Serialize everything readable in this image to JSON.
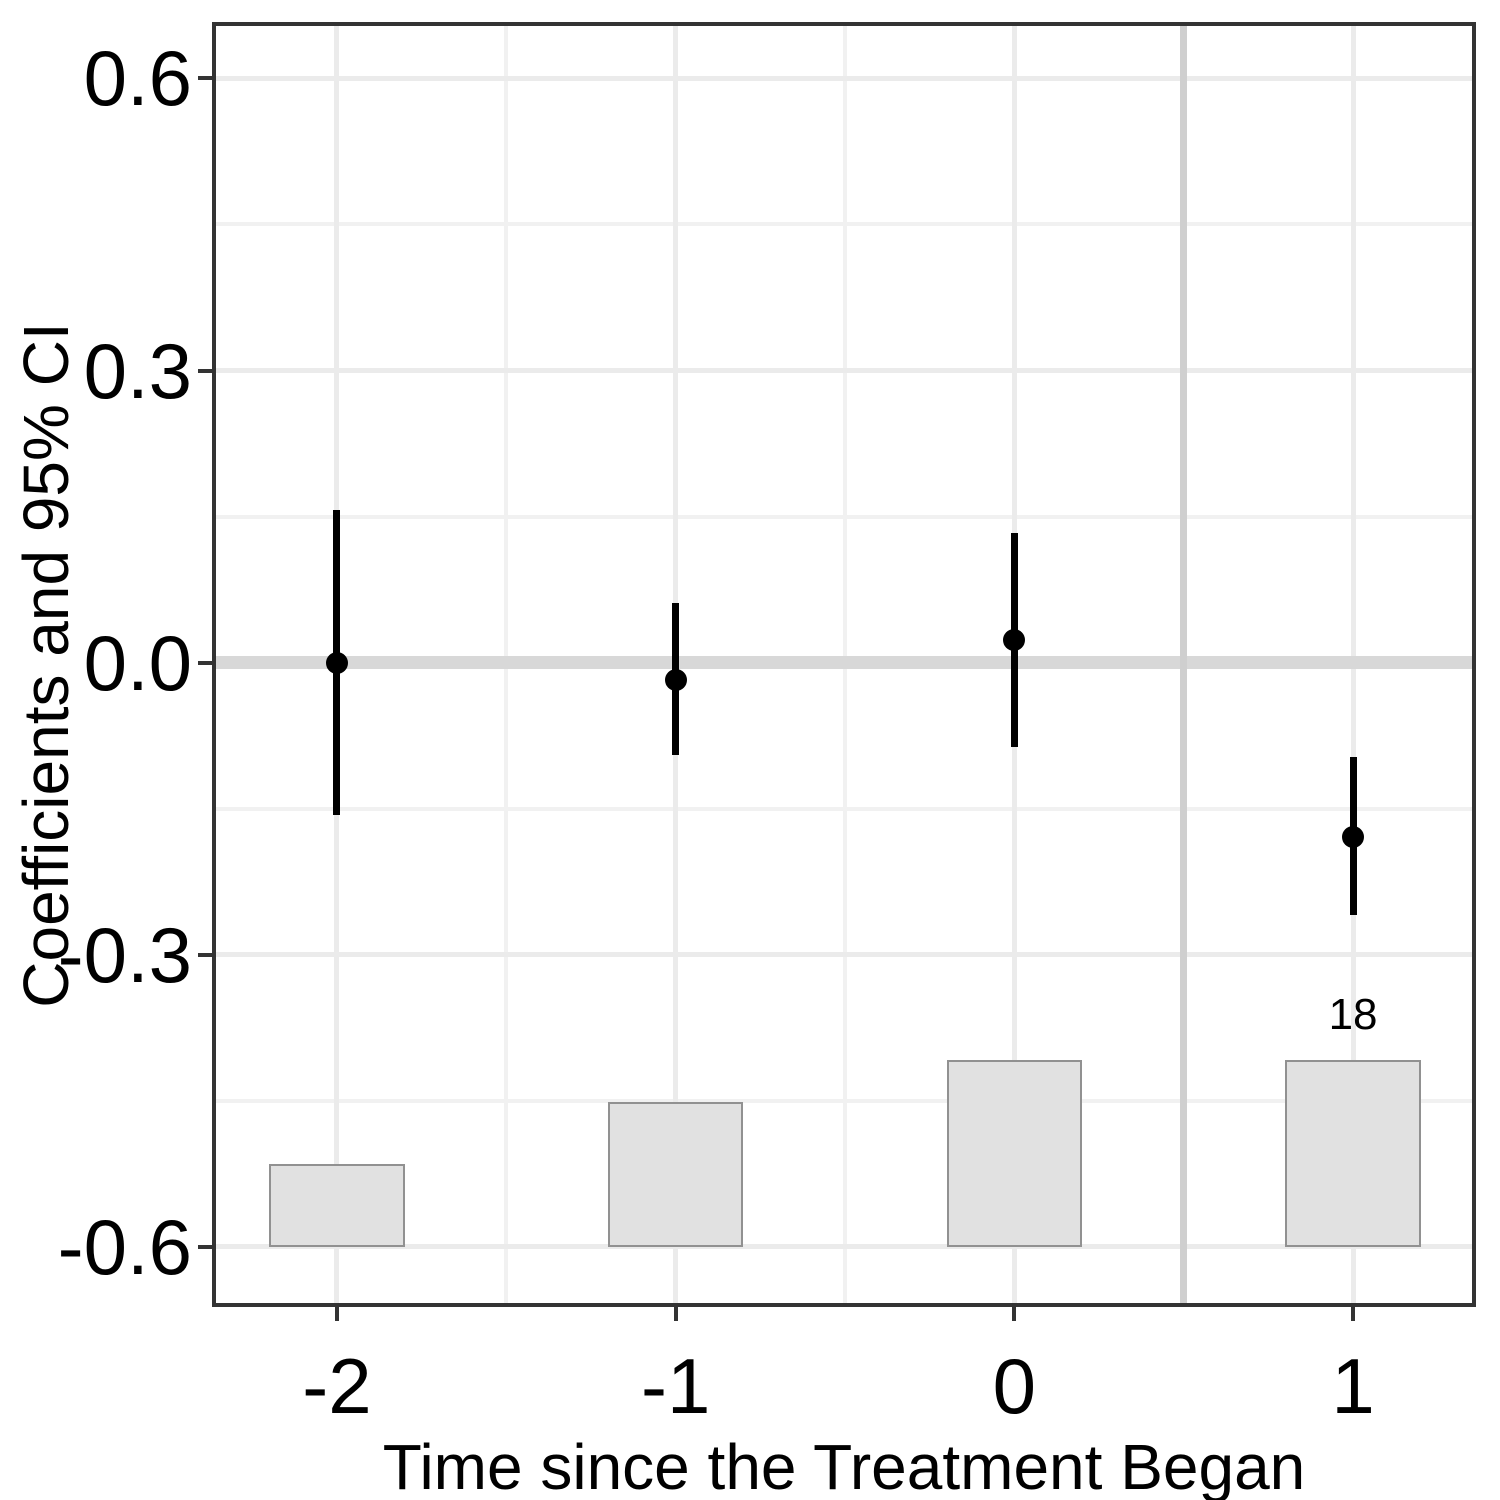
{
  "chart_data": {
    "type": "scatter",
    "subtype": "event-study-pointrange-with-count-bars",
    "title": "",
    "xlabel": "Time since the Treatment Began",
    "ylabel": "Coefficients and 95% CI",
    "xlim": [
      -2.369,
      1.363
    ],
    "ylim": [
      -0.662,
      0.658
    ],
    "x_ticks": [
      -2,
      -1,
      0,
      1
    ],
    "x_tick_labels": [
      "-2",
      "-1",
      "0",
      "1"
    ],
    "y_ticks": [
      0.6,
      0.3,
      0.0,
      -0.3,
      -0.6
    ],
    "y_tick_labels": [
      "0.6",
      "0.3",
      "0.0",
      "-0.3",
      "-0.6"
    ],
    "grid": {
      "major_x": [
        -2,
        -1,
        0,
        1
      ],
      "minor_x": [
        -1.5,
        -0.5,
        0.5
      ],
      "major_y": [
        0.6,
        0.3,
        0.0,
        -0.3,
        -0.6
      ],
      "minor_y": [
        0.45,
        0.15,
        -0.15,
        -0.45
      ],
      "visible": true
    },
    "legend": null,
    "reference_lines": {
      "horizontal_y": 0,
      "vertical_x": 0.5
    },
    "series": [
      {
        "name": "coefficients",
        "type": "pointrange",
        "points": [
          {
            "x": -2,
            "estimate": 0.0,
            "ci_low": -0.157,
            "ci_high": 0.157
          },
          {
            "x": -1,
            "estimate": -0.018,
            "ci_low": -0.095,
            "ci_high": 0.061
          },
          {
            "x": 0,
            "estimate": 0.023,
            "ci_low": -0.087,
            "ci_high": 0.133
          },
          {
            "x": 1,
            "estimate": -0.179,
            "ci_low": -0.259,
            "ci_high": -0.097
          }
        ]
      },
      {
        "name": "treated-observations-bars",
        "type": "bar",
        "baseline": -0.6,
        "bar_width": 0.4,
        "bars": [
          {
            "x": -2,
            "top": -0.515,
            "label": ""
          },
          {
            "x": -1,
            "top": -0.451,
            "label": ""
          },
          {
            "x": 0,
            "top": -0.408,
            "label": ""
          },
          {
            "x": 1,
            "top": -0.408,
            "label": "18"
          }
        ]
      }
    ]
  },
  "colors": {
    "background": "#FFFFFF",
    "panel_border": "#333333",
    "grid_major": "#EBEBEB",
    "grid_minor": "#F1F1F1",
    "zero_line": "#D8D8D8",
    "treatment_line": "#CFCFCF",
    "bar_fill": "#E1E1E1",
    "bar_border": "#919191",
    "point": "#000000",
    "errorbar": "#000000",
    "tick": "#333333",
    "text": "#000000"
  }
}
